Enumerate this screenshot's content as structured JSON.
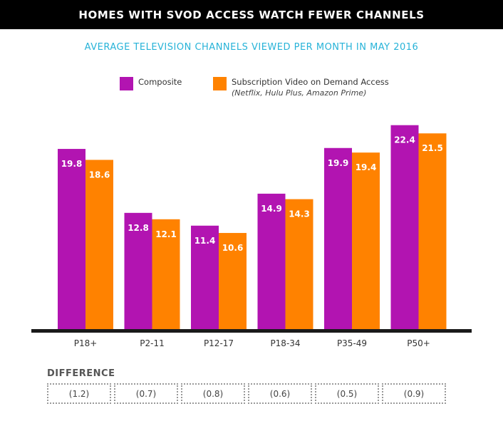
{
  "header": {
    "title": "HOMES WITH SVOD ACCESS WATCH FEWER CHANNELS"
  },
  "chart_data": {
    "type": "bar",
    "title": "AVERAGE TELEVISION CHANNELS VIEWED PER MONTH IN MAY 2016",
    "categories": [
      "P18+",
      "P2-11",
      "P12-17",
      "P18-34",
      "P35-49",
      "P50+"
    ],
    "series": [
      {
        "name": "Composite",
        "color": "#b214b1",
        "values": [
          19.8,
          12.8,
          11.4,
          14.9,
          19.9,
          22.4
        ]
      },
      {
        "name": "Subscription Video on Demand Access",
        "note": "(Netflix, Hulu Plus, Amazon Prime)",
        "color": "#ff8200",
        "values": [
          18.6,
          12.1,
          10.6,
          14.3,
          19.4,
          21.5
        ]
      }
    ],
    "ylim": [
      0,
      23
    ],
    "grid": false,
    "legend_position": "top"
  },
  "difference": {
    "label": "DIFFERENCE",
    "values": [
      "(1.2)",
      "(0.7)",
      "(0.8)",
      "(0.6)",
      "(0.5)",
      "(0.9)"
    ]
  }
}
